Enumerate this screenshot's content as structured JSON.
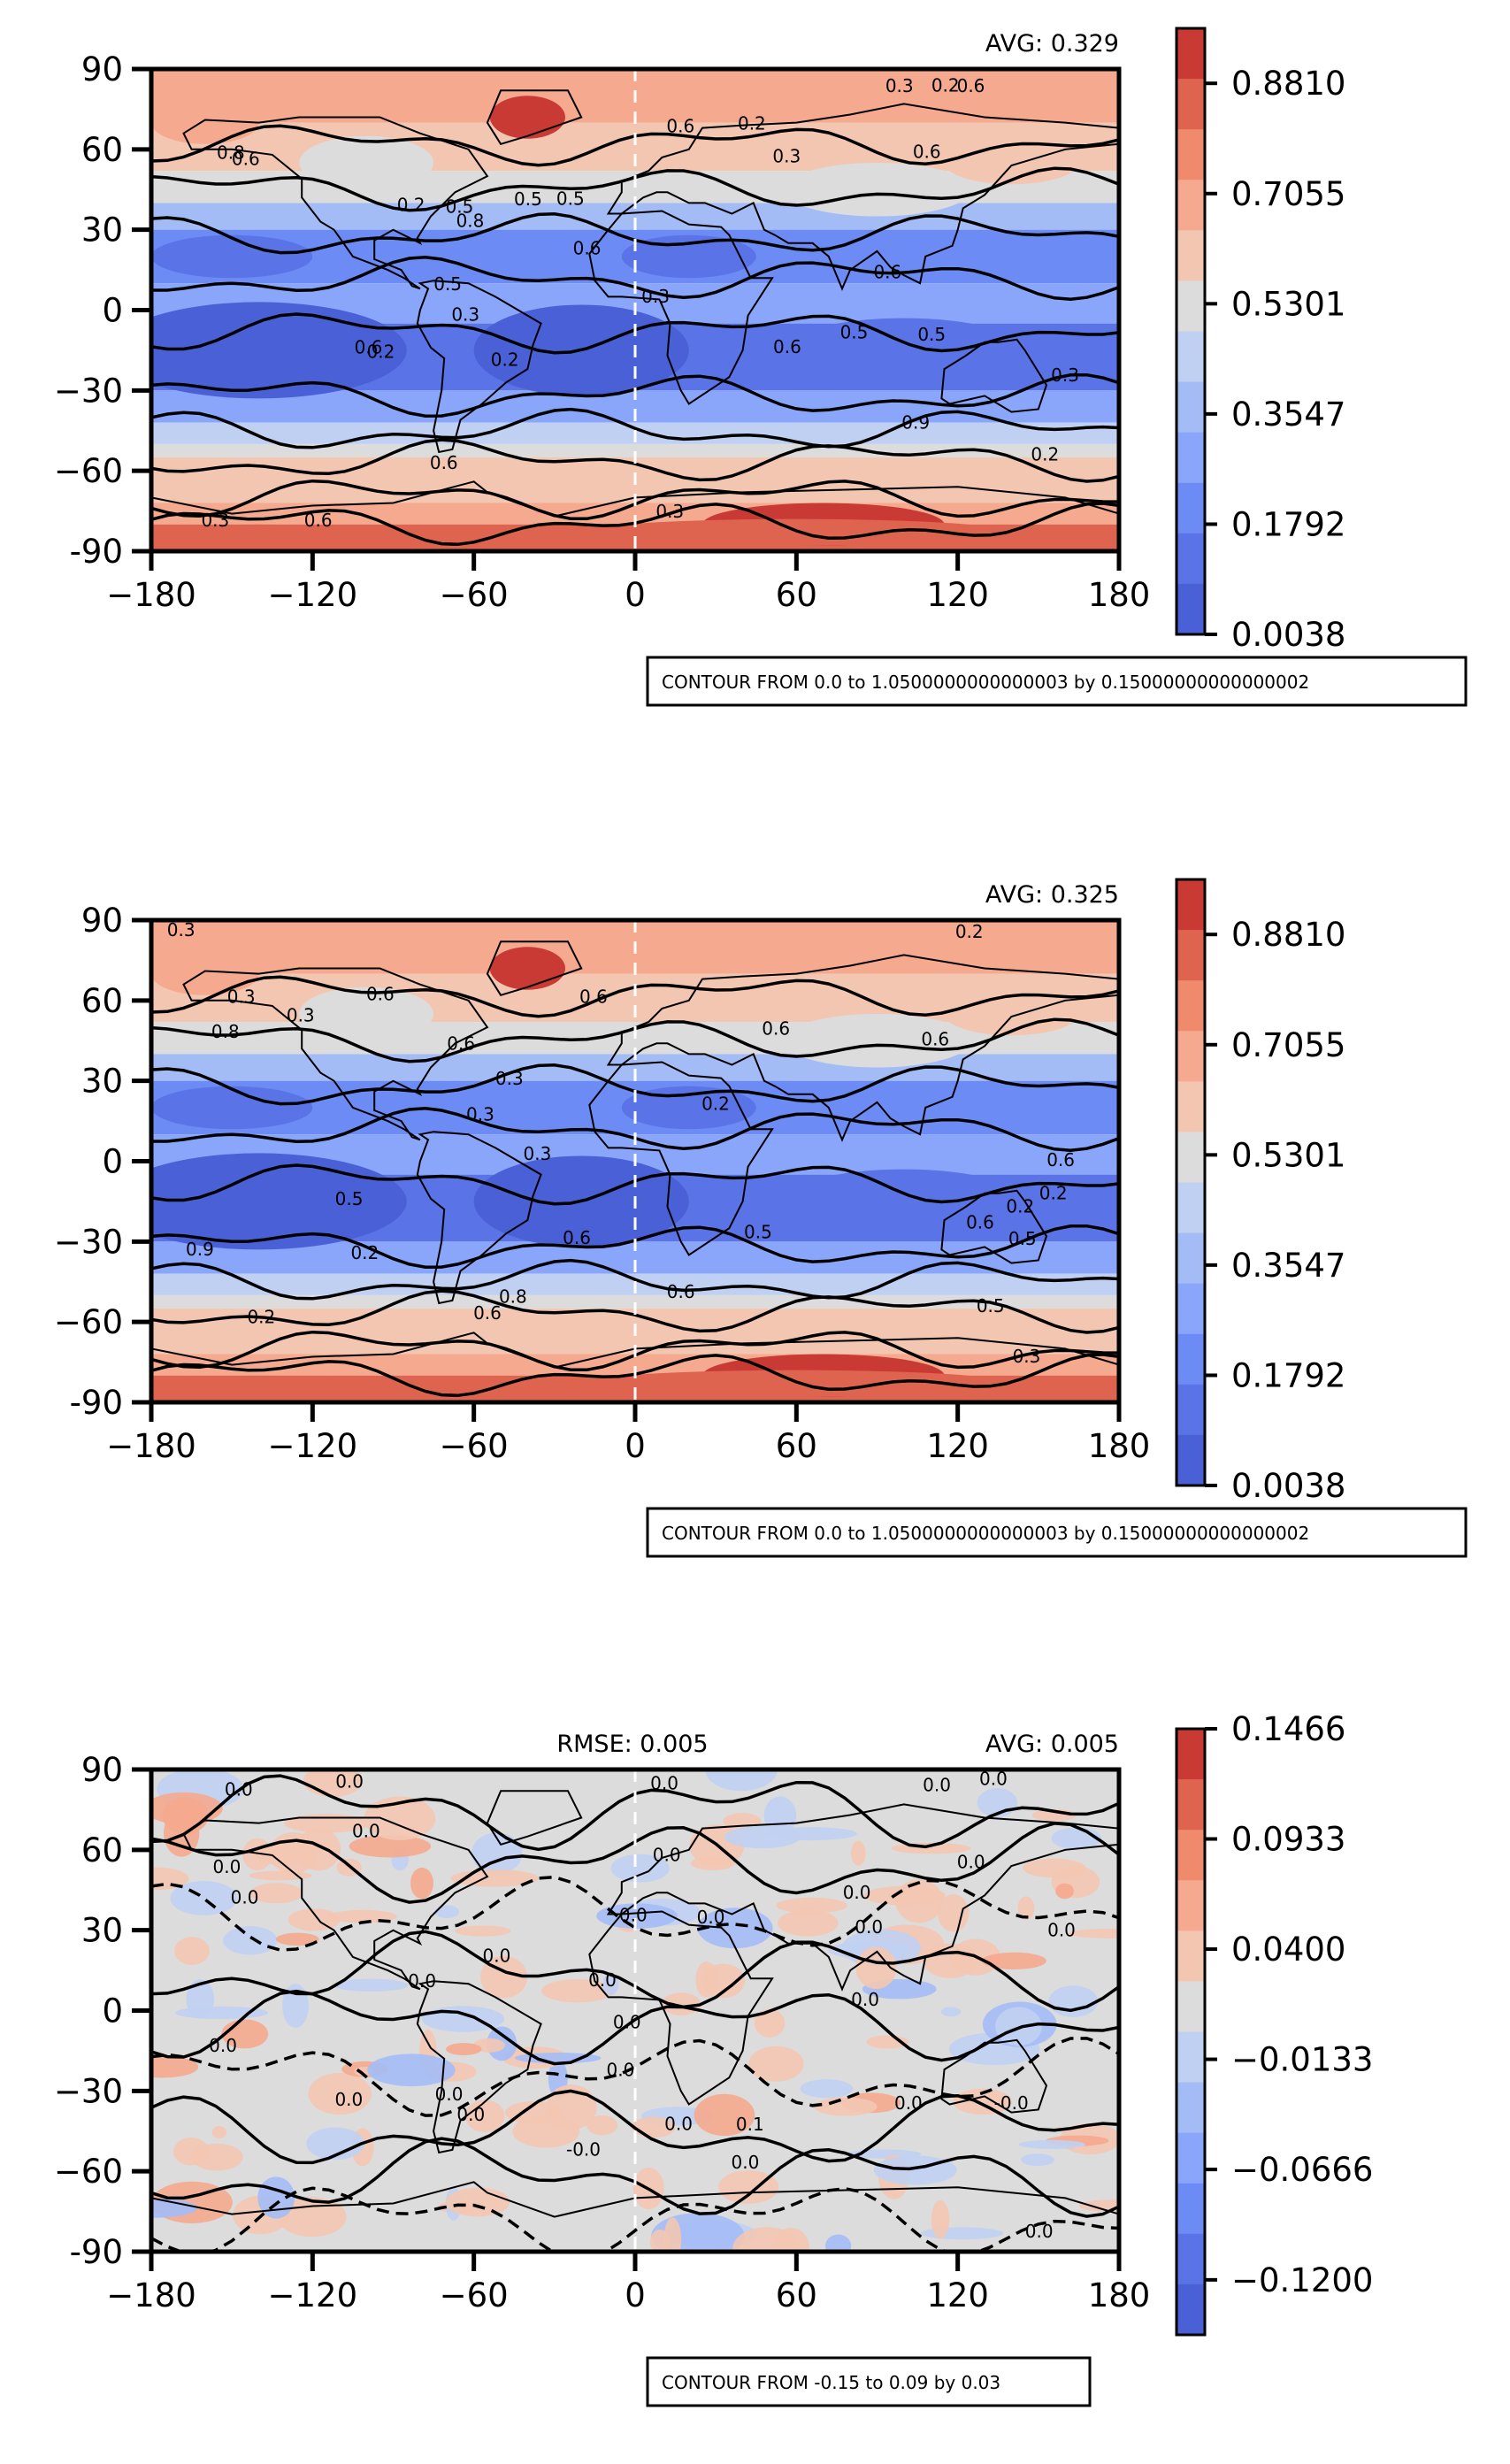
{
  "chart_data": [
    {
      "type": "heatmap",
      "subtype": "filled-contour-map",
      "top_left_label": "",
      "top_right_label": "AVG: 0.329",
      "xlim": [
        -180,
        180
      ],
      "ylim": [
        -90,
        90
      ],
      "xticks": [
        "−180",
        "−120",
        "−60",
        "0",
        "60",
        "120",
        "180"
      ],
      "yticks": [
        "90",
        "60",
        "30",
        "0",
        "−30",
        "−60",
        "-90"
      ],
      "colorbar": {
        "min": 0.0038,
        "max": 0.9686,
        "ticks": [
          "0.8810",
          "0.7055",
          "0.5301",
          "0.3547",
          "0.1792",
          "0.0038"
        ]
      },
      "contour_labels": [
        "0.6",
        "0.6",
        "0.6",
        "0.6",
        "0.6",
        "0.6",
        "0.5",
        "0.5",
        "0.5",
        "0.5",
        "0.5",
        "0.3",
        "0.3",
        "0.3",
        "0.3",
        "0.3",
        "0.3",
        "0.3",
        "0.2",
        "0.2",
        "0.2",
        "0.2",
        "0.2",
        "0.2",
        "0.6",
        "0.6",
        "0.6",
        "0.6",
        "0.9",
        "0.8",
        "0.8",
        "0.5"
      ],
      "note": "CONTOUR FROM 0.0 to 1.0500000000000003 by 0.15000000000000002"
    },
    {
      "type": "heatmap",
      "subtype": "filled-contour-map",
      "top_left_label": "",
      "top_right_label": "AVG: 0.325",
      "xlim": [
        -180,
        180
      ],
      "ylim": [
        -90,
        90
      ],
      "xticks": [
        "−180",
        "−120",
        "−60",
        "0",
        "60",
        "120",
        "180"
      ],
      "yticks": [
        "90",
        "60",
        "30",
        "0",
        "−30",
        "−60",
        "-90"
      ],
      "colorbar": {
        "min": 0.0038,
        "max": 0.9686,
        "ticks": [
          "0.8810",
          "0.7055",
          "0.5301",
          "0.3547",
          "0.1792",
          "0.0038"
        ]
      },
      "contour_labels": [
        "0.6",
        "0.6",
        "0.6",
        "0.6",
        "0.6",
        "0.6",
        "0.5",
        "0.3",
        "0.3",
        "0.3",
        "0.3",
        "0.3",
        "0.3",
        "0.2",
        "0.2",
        "0.2",
        "0.2",
        "0.2",
        "0.2",
        "0.5",
        "0.5",
        "0.5",
        "0.6",
        "0.6",
        "0.6",
        "0.8",
        "0.9",
        "0.6",
        "0.8",
        "0.3"
      ],
      "note": "CONTOUR FROM 0.0 to 1.0500000000000003 by 0.15000000000000002"
    },
    {
      "type": "heatmap",
      "subtype": "filled-contour-map",
      "top_left_label": "RMSE: 0.005",
      "top_right_label": "AVG: 0.005",
      "xlim": [
        -180,
        180
      ],
      "ylim": [
        -90,
        90
      ],
      "xticks": [
        "−180",
        "−120",
        "−60",
        "0",
        "60",
        "120",
        "180"
      ],
      "yticks": [
        "90",
        "60",
        "30",
        "0",
        "−30",
        "−60",
        "-90"
      ],
      "colorbar": {
        "min": -0.1466,
        "max": 0.1466,
        "ticks": [
          "0.1466",
          "0.0933",
          "0.0400",
          "−0.0133",
          "−0.0666",
          "−0.1200"
        ]
      },
      "contour_labels": [
        "0.0",
        "0.0",
        "0.0",
        "0.0",
        "0.0",
        "0.0",
        "0.0",
        "0.0",
        "0.0",
        "0.0",
        "-0.0",
        "0.0",
        "0.0",
        "0.0",
        "0.0",
        "0.0",
        "0.0",
        "0.0",
        "0.0",
        "-0.0",
        "0.0",
        "0.1",
        "0.0",
        "0.0",
        "0.0",
        "0.0",
        "0.0",
        "0.0",
        "0.0",
        "0.0",
        "0.0",
        "0.0"
      ],
      "note": "CONTOUR FROM -0.15 to 0.09 by 0.03"
    }
  ]
}
